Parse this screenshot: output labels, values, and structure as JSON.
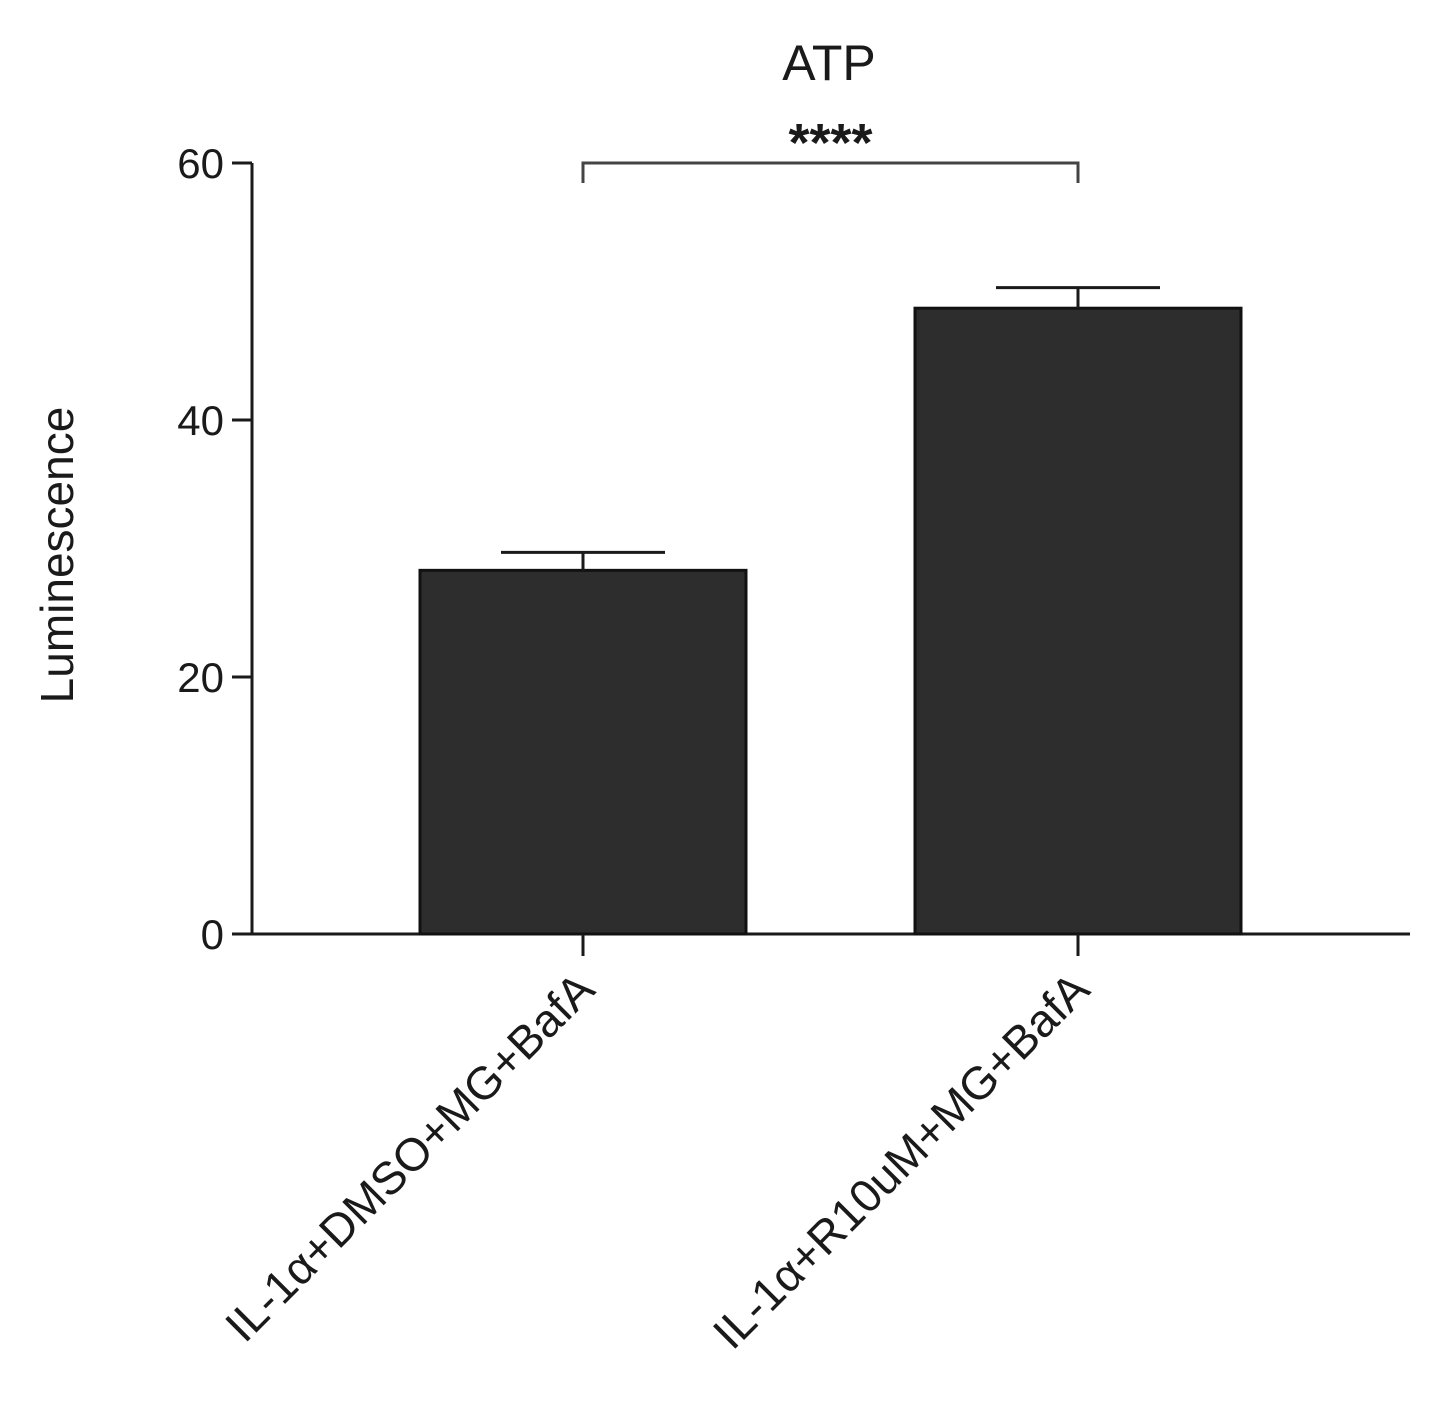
{
  "chart_data": {
    "type": "bar",
    "title": "ATP",
    "ylabel": "Luminescence",
    "xlabel": "",
    "ylim": [
      0,
      60
    ],
    "yticks": [
      0,
      20,
      40,
      60
    ],
    "ytick_labels": [
      "0",
      "20",
      "40",
      "60"
    ],
    "categories": [
      "IL-1α+DMSO+MG+BafA",
      "IL-1α+R10uM+MG+BafA"
    ],
    "values": [
      28.3,
      48.7
    ],
    "errors": [
      1.4,
      1.6
    ],
    "bar_color": "#2d2d2d",
    "significance": {
      "label": "****",
      "between": [
        0,
        1
      ],
      "y": 60
    },
    "grid": false,
    "legend": "none"
  }
}
